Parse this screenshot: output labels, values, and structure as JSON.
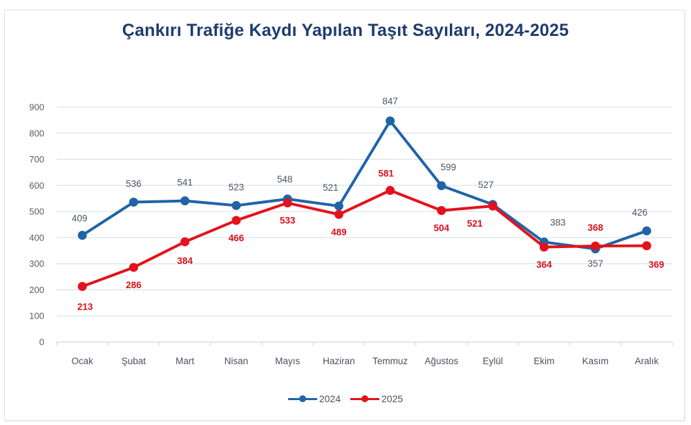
{
  "chart_data": {
    "type": "line",
    "title": "Çankırı Trafiğe Kaydı Yapılan Taşıt Sayıları, 2024-2025",
    "xlabel": "",
    "ylabel": "",
    "ylim": [
      0,
      900
    ],
    "yticks": [
      0,
      100,
      200,
      300,
      400,
      500,
      600,
      700,
      800,
      900
    ],
    "grid": true,
    "legend_position": "bottom",
    "categories": [
      "Ocak",
      "Şubat",
      "Mart",
      "Nisan",
      "Mayıs",
      "Haziran",
      "Temmuz",
      "Ağustos",
      "Eylül",
      "Ekim",
      "Kasım",
      "Aralık"
    ],
    "series": [
      {
        "name": "2024",
        "color": "#1f64a8",
        "values": [
          409,
          536,
          541,
          523,
          548,
          521,
          847,
          599,
          527,
          383,
          357,
          426
        ]
      },
      {
        "name": "2025",
        "color": "#e3121c",
        "values": [
          213,
          286,
          384,
          466,
          533,
          489,
          581,
          504,
          521,
          364,
          368,
          369
        ]
      }
    ]
  },
  "colors": {
    "title": "#1f3b6f",
    "series_2024": "#1f64a8",
    "series_2025": "#e3121c",
    "grid": "#dde3ec"
  },
  "legend": {
    "items": [
      {
        "label": "2024",
        "color": "#1f64a8"
      },
      {
        "label": "2025",
        "color": "#e3121c"
      }
    ]
  }
}
